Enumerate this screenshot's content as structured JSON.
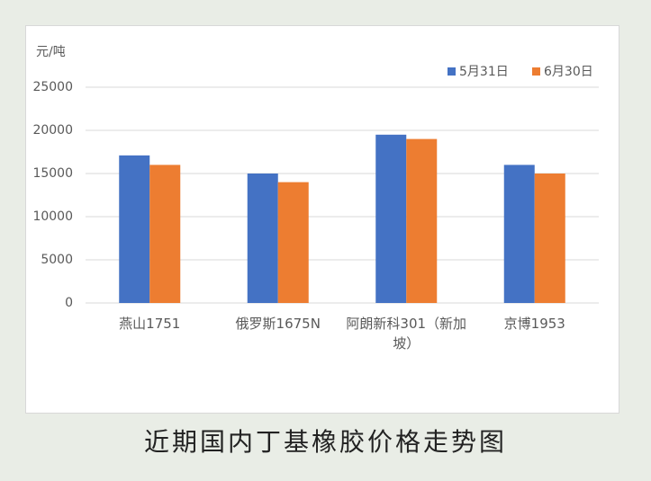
{
  "chart_data": {
    "type": "bar",
    "title": "近期国内丁基橡胶价格走势图",
    "y_label": "元/吨",
    "categories": [
      "燕山1751",
      "俄罗斯1675N",
      "阿朗新科301（新加坡）",
      "京博1953"
    ],
    "series": [
      {
        "name": "5月31日",
        "color": "#4472c4",
        "values": [
          17100,
          15000,
          19500,
          16000
        ]
      },
      {
        "name": "6月30日",
        "color": "#ed7d31",
        "values": [
          16000,
          14000,
          19000,
          15000
        ]
      }
    ],
    "ylim": [
      0,
      25000
    ],
    "yticks": [
      0,
      5000,
      10000,
      15000,
      20000,
      25000
    ],
    "grid": true,
    "legend": "top-right"
  }
}
